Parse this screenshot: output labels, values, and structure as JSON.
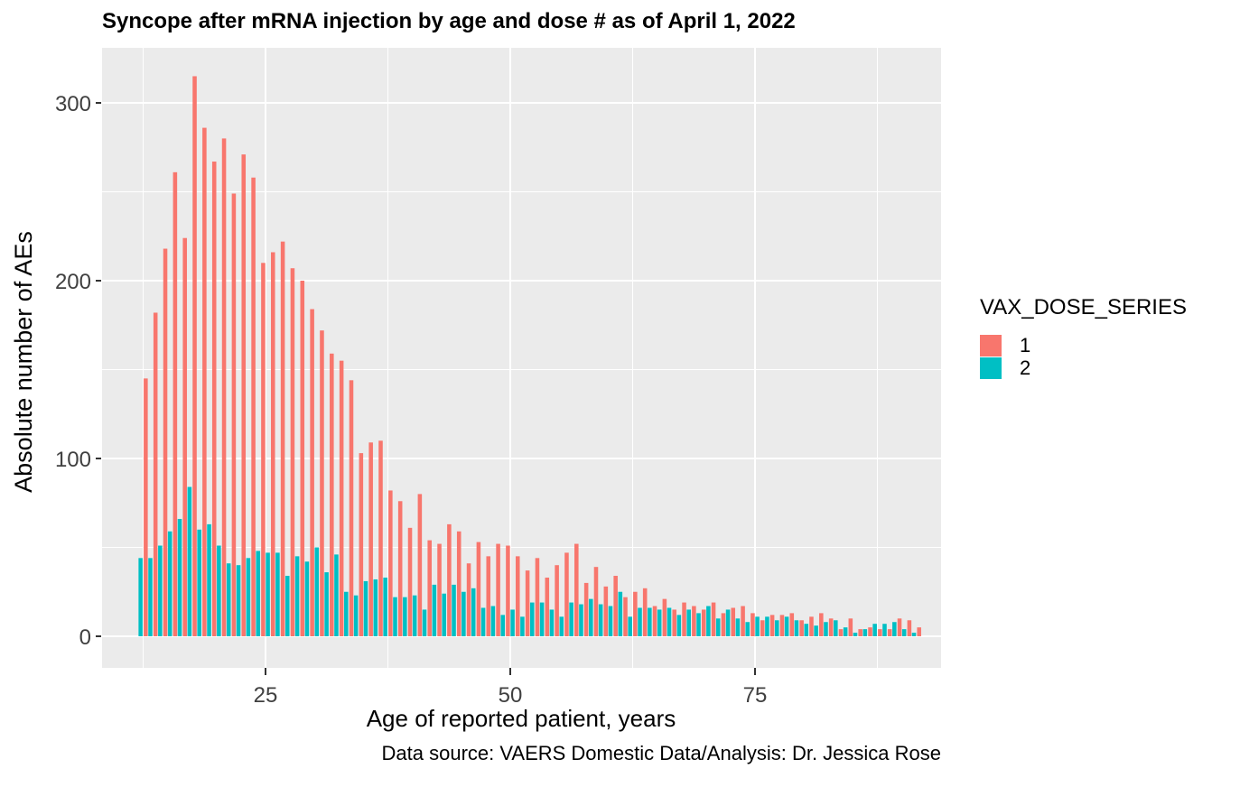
{
  "title": "Syncope after mRNA injection by age and dose # as of April 1, 2022",
  "caption": "Data source: VAERS Domestic Data/Analysis: Dr. Jessica Rose",
  "legend": {
    "title": "VAX_DOSE_SERIES",
    "entries": [
      {
        "label": "1",
        "color": "#F8766D"
      },
      {
        "label": "2",
        "color": "#00BFC4"
      }
    ]
  },
  "colors": {
    "dose1": "#F8766D",
    "dose2": "#00BFC4",
    "panel_background": "#EBEBEB",
    "gridline": "#FFFFFF",
    "tick_label": "#404040",
    "tick_mark": "#333333"
  },
  "chart_data": {
    "type": "bar",
    "grouping": "dodged",
    "title": "Syncope after mRNA injection by age and dose # as of April 1, 2022",
    "xlabel": "Age of reported patient, years",
    "ylabel": "Absolute number of AEs",
    "caption": "Data source: VAERS Domestic Data/Analysis: Dr. Jessica Rose",
    "legend_title": "VAX_DOSE_SERIES",
    "legend_position": "right",
    "grid": true,
    "ylim": [
      0,
      331
    ],
    "xlim": [
      8.3,
      94
    ],
    "x_ticks": [
      25,
      50,
      75
    ],
    "x_tick_labels": [
      "25",
      "50",
      "75"
    ],
    "x_minor_ticks": [
      12.5,
      37.5,
      62.5,
      87.5
    ],
    "y_ticks": [
      0,
      100,
      200,
      300
    ],
    "y_tick_labels": [
      "0",
      "100",
      "200",
      "300"
    ],
    "y_minor_ticks": [
      50,
      150,
      250
    ],
    "categories": [
      12,
      13,
      14,
      15,
      16,
      17,
      18,
      19,
      20,
      21,
      22,
      23,
      24,
      25,
      26,
      27,
      28,
      29,
      30,
      31,
      32,
      33,
      34,
      35,
      36,
      37,
      38,
      39,
      40,
      41,
      42,
      43,
      44,
      45,
      46,
      47,
      48,
      49,
      50,
      51,
      52,
      53,
      54,
      55,
      56,
      57,
      58,
      59,
      60,
      61,
      62,
      63,
      64,
      65,
      66,
      67,
      68,
      69,
      70,
      71,
      72,
      73,
      74,
      75,
      76,
      77,
      78,
      79,
      80,
      81,
      82,
      83,
      84,
      85,
      86,
      87,
      88,
      89,
      90,
      91,
      92
    ],
    "series": [
      {
        "name": "1",
        "color": "#F8766D",
        "values": [
          0,
          145,
          182,
          218,
          261,
          224,
          315,
          286,
          267,
          280,
          249,
          271,
          258,
          210,
          216,
          222,
          207,
          200,
          184,
          172,
          159,
          155,
          144,
          103,
          109,
          110,
          82,
          76,
          61,
          80,
          54,
          52,
          63,
          59,
          41,
          53,
          45,
          52,
          51,
          45,
          37,
          44,
          33,
          40,
          47,
          52,
          30,
          39,
          28,
          34,
          22,
          25,
          27,
          17,
          21,
          15,
          19,
          17,
          15,
          19,
          13,
          16,
          17,
          13,
          9,
          12,
          12,
          13,
          9,
          11,
          13,
          10,
          4,
          10,
          4,
          5,
          4,
          4,
          10,
          9,
          5
        ]
      },
      {
        "name": "2",
        "color": "#00BFC4",
        "values": [
          44,
          44,
          51,
          59,
          66,
          84,
          60,
          63,
          51,
          41,
          40,
          44,
          48,
          47,
          47,
          34,
          45,
          42,
          50,
          36,
          46,
          25,
          23,
          31,
          32,
          33,
          22,
          22,
          23,
          15,
          29,
          24,
          29,
          25,
          27,
          16,
          17,
          12,
          15,
          11,
          19,
          19,
          15,
          11,
          19,
          18,
          21,
          18,
          17,
          25,
          11,
          16,
          16,
          15,
          16,
          12,
          15,
          13,
          17,
          10,
          15,
          10,
          8,
          11,
          11,
          9,
          11,
          9,
          7,
          6,
          8,
          9,
          5,
          2,
          4,
          7,
          7,
          8,
          4,
          2,
          0
        ]
      }
    ]
  }
}
